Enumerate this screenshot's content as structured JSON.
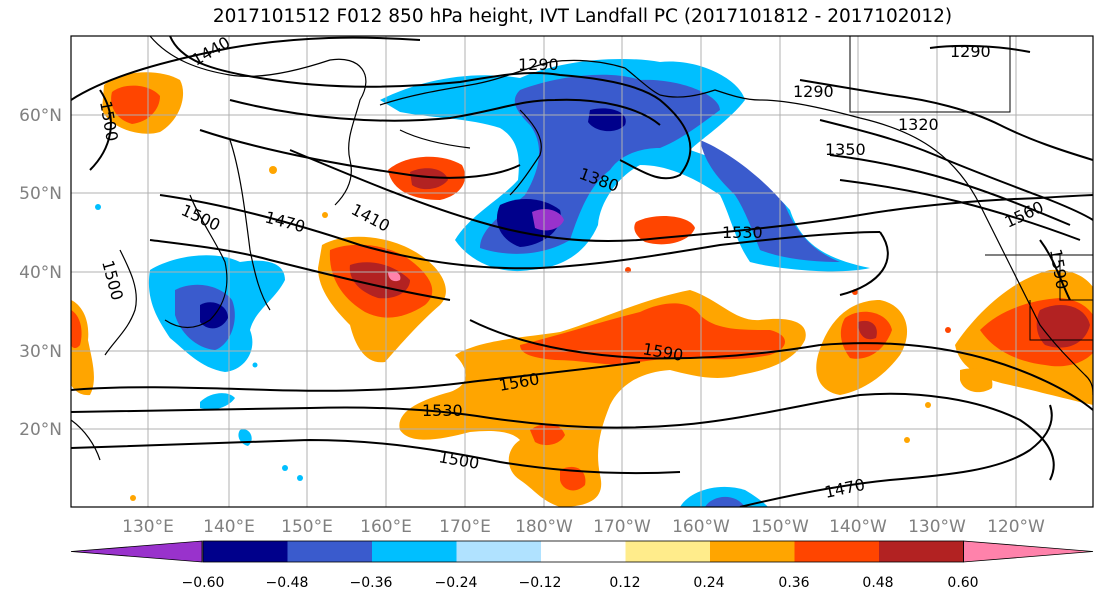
{
  "title": "2017101512 F012 850 hPa height, IVT Landfall PC (2017101812 - 2017102012)",
  "map": {
    "lat_labels": [
      "60°N",
      "50°N",
      "40°N",
      "30°N",
      "20°N"
    ],
    "lon_labels": [
      "130°E",
      "140°E",
      "150°E",
      "160°E",
      "170°E",
      "180°W",
      "170°W",
      "160°W",
      "150°W",
      "140°W",
      "130°W",
      "120°W"
    ],
    "height_contour_labels": [
      "1290",
      "1290",
      "1290",
      "1320",
      "1350",
      "1380",
      "1410",
      "1440",
      "1470",
      "1500",
      "1500",
      "1500",
      "1530",
      "1530",
      "1560",
      "1560",
      "1590",
      "1590",
      "1470",
      "1500"
    ]
  },
  "colorbar": {
    "ticks": [
      "−0.60",
      "−0.48",
      "−0.36",
      "−0.24",
      "−0.12",
      "0.12",
      "0.24",
      "0.36",
      "0.48",
      "0.60"
    ],
    "colors": [
      "#9932cc",
      "#00008b",
      "#3a5bcd",
      "#00bfff",
      "#b0e2ff",
      "#ffffff",
      "#ffec8b",
      "#ffa500",
      "#ff4500",
      "#b22222",
      "#ff82ab"
    ]
  }
}
